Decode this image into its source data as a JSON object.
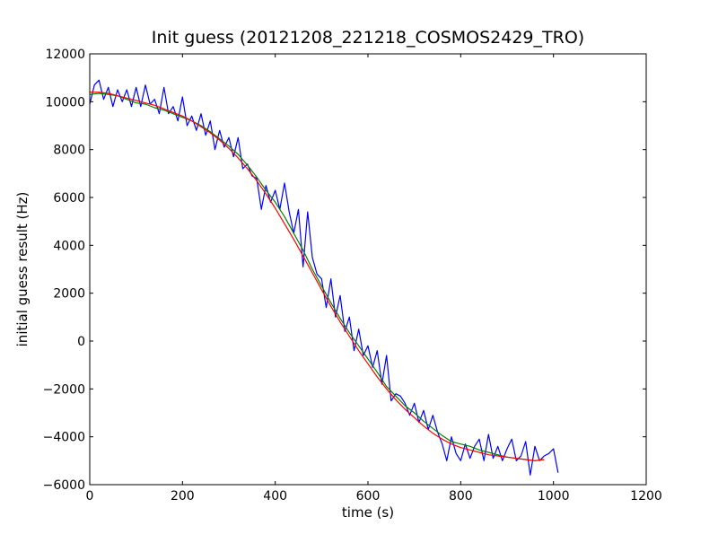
{
  "chart_data": {
    "type": "line",
    "title": "Init guess (20121208_221218_COSMOS2429_TRO)",
    "xlabel": "time (s)",
    "ylabel": "initial guess result (Hz)",
    "xlim": [
      0,
      1200
    ],
    "ylim": [
      -6000,
      12000
    ],
    "xticks": [
      0,
      200,
      400,
      600,
      800,
      1000,
      1200
    ],
    "yticks": [
      -6000,
      -4000,
      -2000,
      0,
      2000,
      4000,
      6000,
      8000,
      10000,
      12000
    ],
    "grid": false,
    "legend": "none",
    "series": [
      {
        "color": "#0000ff",
        "x": [
          0,
          10,
          20,
          30,
          40,
          50,
          60,
          70,
          80,
          90,
          100,
          110,
          120,
          130,
          140,
          150,
          160,
          170,
          180,
          190,
          200,
          210,
          220,
          230,
          240,
          250,
          260,
          270,
          280,
          290,
          300,
          310,
          320,
          330,
          340,
          350,
          360,
          370,
          380,
          390,
          400,
          410,
          420,
          430,
          440,
          450,
          460,
          470,
          480,
          490,
          500,
          510,
          520,
          530,
          540,
          550,
          560,
          570,
          580,
          590,
          600,
          610,
          620,
          630,
          640,
          650,
          660,
          670,
          680,
          690,
          700,
          710,
          720,
          730,
          740,
          750,
          760,
          770,
          780,
          790,
          800,
          810,
          820,
          830,
          840,
          850,
          860,
          870,
          880,
          890,
          900,
          910,
          920,
          930,
          940,
          950,
          960,
          970,
          980,
          990,
          1000,
          1010
        ],
        "y": [
          9900,
          10700,
          10900,
          10100,
          10600,
          9800,
          10500,
          10000,
          10500,
          9800,
          10600,
          9800,
          10700,
          9900,
          10100,
          9500,
          10600,
          9500,
          9800,
          9200,
          10200,
          9000,
          9400,
          8800,
          9500,
          8600,
          9200,
          8000,
          8800,
          8100,
          8500,
          7700,
          8500,
          7200,
          7400,
          6900,
          6800,
          5500,
          6500,
          5800,
          6300,
          5500,
          6600,
          5400,
          4500,
          5500,
          3100,
          5400,
          3500,
          2800,
          2600,
          1400,
          2600,
          1000,
          1900,
          400,
          1000,
          -400,
          500,
          -600,
          -200,
          -1100,
          -400,
          -1800,
          -600,
          -2500,
          -2200,
          -2300,
          -2600,
          -3100,
          -2600,
          -3400,
          -2900,
          -3700,
          -3100,
          -3800,
          -4300,
          -5000,
          -4000,
          -4700,
          -5000,
          -4300,
          -4900,
          -4400,
          -4100,
          -5000,
          -3900,
          -4900,
          -4400,
          -5000,
          -4500,
          -4100,
          -5000,
          -4800,
          -4200,
          -5600,
          -4400,
          -5000,
          -4800,
          -4700,
          -4500,
          -5500
        ]
      },
      {
        "color": "#008000",
        "x": [
          0,
          20,
          40,
          60,
          80,
          100,
          120,
          140,
          160,
          180,
          200,
          220,
          240,
          260,
          280,
          300,
          320,
          340,
          360,
          380,
          400,
          420,
          440,
          460,
          480,
          500,
          520,
          540,
          560,
          580,
          600,
          620,
          640,
          660,
          680,
          700,
          720,
          740,
          760,
          780,
          800,
          820,
          840,
          860,
          880,
          900,
          920,
          940,
          960,
          980
        ],
        "y": [
          10300,
          10350,
          10300,
          10250,
          10100,
          9950,
          9900,
          9750,
          9650,
          9500,
          9350,
          9200,
          9000,
          8750,
          8450,
          8150,
          7800,
          7350,
          6850,
          6300,
          5800,
          5200,
          4500,
          3800,
          3000,
          2300,
          1600,
          950,
          350,
          -200,
          -750,
          -1300,
          -1900,
          -2300,
          -2700,
          -3000,
          -3350,
          -3650,
          -3950,
          -4200,
          -4300,
          -4400,
          -4550,
          -4650,
          -4750,
          -4850,
          -4900,
          -4950,
          -5000,
          -4950
        ]
      },
      {
        "color": "#ff0000",
        "x": [
          0,
          20,
          40,
          60,
          80,
          100,
          120,
          140,
          160,
          180,
          200,
          220,
          240,
          260,
          280,
          300,
          320,
          340,
          360,
          380,
          400,
          420,
          440,
          460,
          480,
          500,
          520,
          540,
          560,
          580,
          600,
          620,
          640,
          660,
          680,
          700,
          720,
          740,
          760,
          780,
          800,
          820,
          840,
          860,
          880,
          900,
          920,
          940,
          960,
          980
        ],
        "y": [
          10400,
          10400,
          10350,
          10250,
          10150,
          10050,
          9950,
          9850,
          9700,
          9550,
          9400,
          9200,
          8950,
          8700,
          8400,
          8050,
          7650,
          7200,
          6700,
          6150,
          5550,
          4900,
          4250,
          3550,
          2850,
          2150,
          1450,
          800,
          200,
          -400,
          -950,
          -1500,
          -2000,
          -2450,
          -2850,
          -3200,
          -3550,
          -3850,
          -4100,
          -4300,
          -4450,
          -4550,
          -4650,
          -4750,
          -4800,
          -4850,
          -4900,
          -4950,
          -5000,
          -4950
        ]
      }
    ]
  }
}
